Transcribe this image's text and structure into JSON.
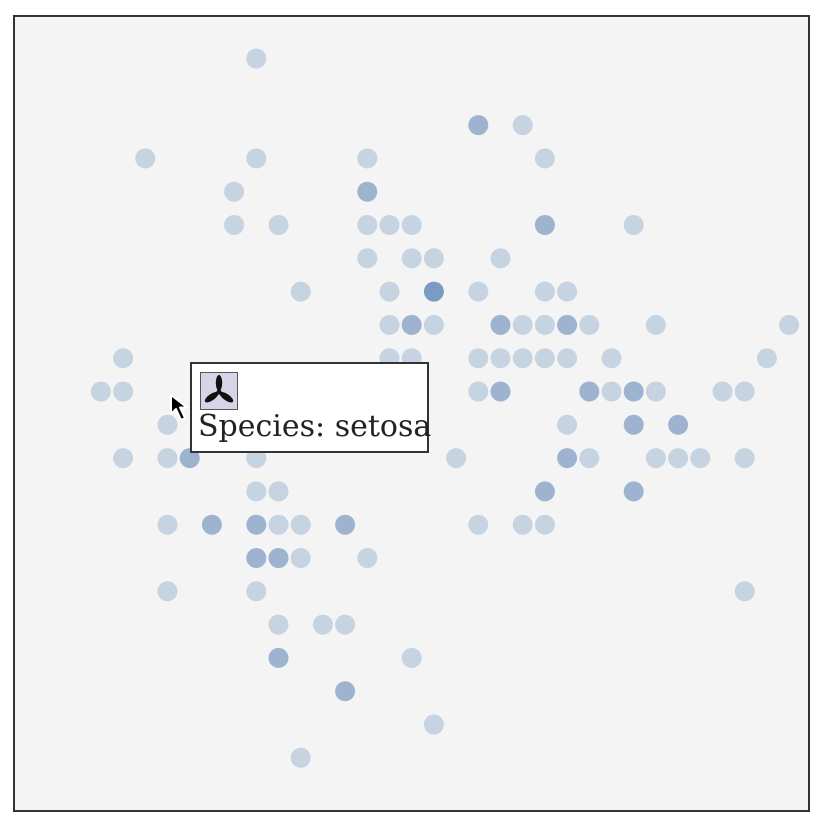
{
  "chart_data": {
    "type": "scatter",
    "title": "",
    "xlabel": "",
    "ylabel": "",
    "grid": false,
    "legend": "none",
    "x_step": 1,
    "y_step": 1,
    "points": [
      {
        "x": 9,
        "y": 0,
        "c": 1
      },
      {
        "x": 19,
        "y": 2,
        "c": 2
      },
      {
        "x": 21,
        "y": 2,
        "c": 1
      },
      {
        "x": 4,
        "y": 3,
        "c": 1
      },
      {
        "x": 9,
        "y": 3,
        "c": 1
      },
      {
        "x": 14,
        "y": 3,
        "c": 1
      },
      {
        "x": 22,
        "y": 3,
        "c": 1
      },
      {
        "x": 8,
        "y": 4,
        "c": 1
      },
      {
        "x": 14,
        "y": 4,
        "c": 2
      },
      {
        "x": 8,
        "y": 5,
        "c": 1
      },
      {
        "x": 10,
        "y": 5,
        "c": 1
      },
      {
        "x": 14,
        "y": 5,
        "c": 1
      },
      {
        "x": 15,
        "y": 5,
        "c": 1
      },
      {
        "x": 16,
        "y": 5,
        "c": 1
      },
      {
        "x": 22,
        "y": 5,
        "c": 2
      },
      {
        "x": 26,
        "y": 5,
        "c": 1
      },
      {
        "x": 14,
        "y": 6,
        "c": 1
      },
      {
        "x": 16,
        "y": 6,
        "c": 1
      },
      {
        "x": 17,
        "y": 6,
        "c": 1
      },
      {
        "x": 20,
        "y": 6,
        "c": 1
      },
      {
        "x": 11,
        "y": 7,
        "c": 1
      },
      {
        "x": 15,
        "y": 7,
        "c": 1
      },
      {
        "x": 17,
        "y": 7,
        "c": 3
      },
      {
        "x": 19,
        "y": 7,
        "c": 1
      },
      {
        "x": 22,
        "y": 7,
        "c": 1
      },
      {
        "x": 23,
        "y": 7,
        "c": 1
      },
      {
        "x": 15,
        "y": 8,
        "c": 1
      },
      {
        "x": 16,
        "y": 8,
        "c": 2
      },
      {
        "x": 17,
        "y": 8,
        "c": 1
      },
      {
        "x": 20,
        "y": 8,
        "c": 2
      },
      {
        "x": 21,
        "y": 8,
        "c": 1
      },
      {
        "x": 22,
        "y": 8,
        "c": 1
      },
      {
        "x": 23,
        "y": 8,
        "c": 2
      },
      {
        "x": 24,
        "y": 8,
        "c": 1
      },
      {
        "x": 27,
        "y": 8,
        "c": 1
      },
      {
        "x": 33,
        "y": 8,
        "c": 1
      },
      {
        "x": 3,
        "y": 9,
        "c": 1
      },
      {
        "x": 15,
        "y": 9,
        "c": 1
      },
      {
        "x": 16,
        "y": 9,
        "c": 1
      },
      {
        "x": 19,
        "y": 9,
        "c": 1
      },
      {
        "x": 20,
        "y": 9,
        "c": 1
      },
      {
        "x": 21,
        "y": 9,
        "c": 1
      },
      {
        "x": 22,
        "y": 9,
        "c": 1
      },
      {
        "x": 23,
        "y": 9,
        "c": 1
      },
      {
        "x": 25,
        "y": 9,
        "c": 1
      },
      {
        "x": 32,
        "y": 9,
        "c": 1
      },
      {
        "x": 2,
        "y": 10,
        "c": 1
      },
      {
        "x": 3,
        "y": 10,
        "c": 1
      },
      {
        "x": 8,
        "y": 10,
        "c": 1
      },
      {
        "x": 19,
        "y": 10,
        "c": 1
      },
      {
        "x": 20,
        "y": 10,
        "c": 2
      },
      {
        "x": 24,
        "y": 10,
        "c": 2
      },
      {
        "x": 25,
        "y": 10,
        "c": 1
      },
      {
        "x": 26,
        "y": 10,
        "c": 2
      },
      {
        "x": 27,
        "y": 10,
        "c": 1
      },
      {
        "x": 30,
        "y": 10,
        "c": 1
      },
      {
        "x": 31,
        "y": 10,
        "c": 1
      },
      {
        "x": 5,
        "y": 11,
        "c": 1
      },
      {
        "x": 7,
        "y": 11,
        "c": 1
      },
      {
        "x": 8,
        "y": 11,
        "c": 2
      },
      {
        "x": 23,
        "y": 11,
        "c": 1
      },
      {
        "x": 26,
        "y": 11,
        "c": 2
      },
      {
        "x": 28,
        "y": 11,
        "c": 2
      },
      {
        "x": 3,
        "y": 12,
        "c": 1
      },
      {
        "x": 5,
        "y": 12,
        "c": 1
      },
      {
        "x": 6,
        "y": 12,
        "c": 2
      },
      {
        "x": 9,
        "y": 12,
        "c": 1
      },
      {
        "x": 18,
        "y": 12,
        "c": 1
      },
      {
        "x": 23,
        "y": 12,
        "c": 2
      },
      {
        "x": 24,
        "y": 12,
        "c": 1
      },
      {
        "x": 27,
        "y": 12,
        "c": 1
      },
      {
        "x": 28,
        "y": 12,
        "c": 1
      },
      {
        "x": 29,
        "y": 12,
        "c": 1
      },
      {
        "x": 31,
        "y": 12,
        "c": 1
      },
      {
        "x": 9,
        "y": 13,
        "c": 1
      },
      {
        "x": 10,
        "y": 13,
        "c": 1
      },
      {
        "x": 22,
        "y": 13,
        "c": 2
      },
      {
        "x": 26,
        "y": 13,
        "c": 2
      },
      {
        "x": 5,
        "y": 14,
        "c": 1
      },
      {
        "x": 7,
        "y": 14,
        "c": 2
      },
      {
        "x": 9,
        "y": 14,
        "c": 2
      },
      {
        "x": 10,
        "y": 14,
        "c": 1
      },
      {
        "x": 11,
        "y": 14,
        "c": 1
      },
      {
        "x": 13,
        "y": 14,
        "c": 2
      },
      {
        "x": 19,
        "y": 14,
        "c": 1
      },
      {
        "x": 21,
        "y": 14,
        "c": 1
      },
      {
        "x": 22,
        "y": 14,
        "c": 1
      },
      {
        "x": 9,
        "y": 15,
        "c": 2
      },
      {
        "x": 10,
        "y": 15,
        "c": 2
      },
      {
        "x": 11,
        "y": 15,
        "c": 1
      },
      {
        "x": 14,
        "y": 15,
        "c": 1
      },
      {
        "x": 5,
        "y": 16,
        "c": 1
      },
      {
        "x": 9,
        "y": 16,
        "c": 1
      },
      {
        "x": 31,
        "y": 16,
        "c": 1
      },
      {
        "x": 10,
        "y": 17,
        "c": 1
      },
      {
        "x": 12,
        "y": 17,
        "c": 1
      },
      {
        "x": 13,
        "y": 17,
        "c": 1
      },
      {
        "x": 10,
        "y": 18,
        "c": 2
      },
      {
        "x": 16,
        "y": 18,
        "c": 1
      },
      {
        "x": 13,
        "y": 19,
        "c": 2
      },
      {
        "x": 17,
        "y": 20,
        "c": 1
      },
      {
        "x": 11,
        "y": 21,
        "c": 1
      }
    ],
    "highlight": {
      "x": 7,
      "y": 10
    }
  },
  "colors": {
    "background": "#f4f4f4",
    "count_1": "#c6d3e1",
    "count_2": "#9db3cf",
    "count_3": "#7b9cc2",
    "highlight": "#e2302a"
  },
  "tooltip": {
    "icon": "iris-flower-icon",
    "text": "Species: setosa"
  },
  "cursor": {
    "icon": "arrow-cursor-icon"
  }
}
